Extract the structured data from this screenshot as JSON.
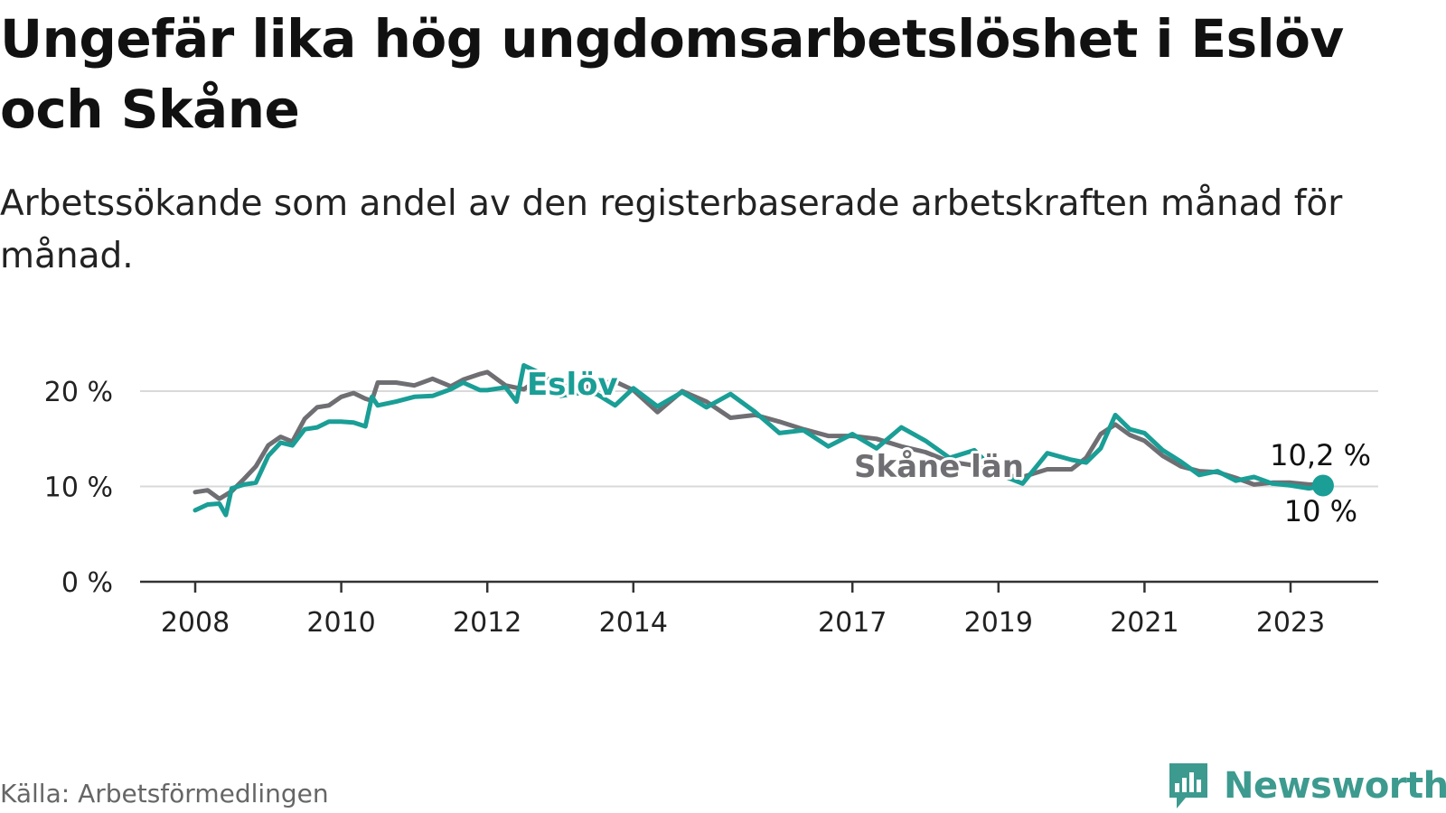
{
  "title": "Ungefär lika hög ungdomsarbetslöshet i Eslöv och Skåne",
  "subtitle": "Arbetssökande som andel av den registerbaserade arbetskraften månad för månad.",
  "source": "Källa: Arbetsförmedlingen",
  "logo": {
    "text": "Newsworthy",
    "icon": "newsworthy-bar-chart-icon"
  },
  "chart_data": {
    "type": "line",
    "ylim": [
      0,
      20
    ],
    "yticks": [
      0,
      10,
      20
    ],
    "ytick_labels": [
      "0 %",
      "10 %",
      "20 %"
    ],
    "xlim": [
      2008,
      2023.5
    ],
    "xticks": [
      2008,
      2010,
      2012,
      2014,
      2017,
      2019,
      2021,
      2023
    ],
    "xtick_labels": [
      "2008",
      "2010",
      "2012",
      "2014",
      "2017",
      "2019",
      "2021",
      "2023"
    ],
    "grid": true,
    "series": [
      {
        "name": "Skåne län",
        "color": "#6f6f73",
        "end_label": "10,2 %",
        "x": [
          2008.0,
          2008.17,
          2008.33,
          2008.5,
          2008.67,
          2008.83,
          2009.0,
          2009.17,
          2009.33,
          2009.5,
          2009.67,
          2009.83,
          2010.0,
          2010.17,
          2010.33,
          2010.42,
          2010.5,
          2010.75,
          2011.0,
          2011.25,
          2011.5,
          2011.67,
          2011.9,
          2012.0,
          2012.25,
          2012.5,
          2012.75,
          2013.0,
          2013.25,
          2013.5,
          2013.75,
          2014.0,
          2014.33,
          2014.67,
          2015.0,
          2015.33,
          2015.67,
          2016.0,
          2016.33,
          2016.67,
          2017.0,
          2017.33,
          2017.67,
          2018.0,
          2018.33,
          2018.67,
          2019.0,
          2019.33,
          2019.67,
          2020.0,
          2020.2,
          2020.4,
          2020.6,
          2020.8,
          2021.0,
          2021.25,
          2021.5,
          2021.75,
          2022.0,
          2022.25,
          2022.5,
          2022.75,
          2023.0,
          2023.25,
          2023.42
        ],
        "y": [
          9.4,
          9.6,
          8.7,
          9.5,
          10.8,
          12.1,
          14.3,
          15.2,
          14.7,
          17.1,
          18.3,
          18.5,
          19.4,
          19.8,
          19.2,
          19.0,
          20.9,
          20.9,
          20.6,
          21.3,
          20.5,
          21.2,
          21.8,
          22.0,
          20.6,
          20.2,
          21.5,
          20.8,
          20.1,
          20.8,
          21.0,
          20.1,
          17.8,
          20.0,
          18.9,
          17.2,
          17.5,
          16.8,
          16.0,
          15.3,
          15.3,
          15.0,
          14.2,
          13.6,
          12.6,
          12.2,
          11.2,
          11.0,
          11.8,
          11.8,
          13.0,
          15.5,
          16.5,
          15.4,
          14.8,
          13.2,
          12.1,
          11.6,
          11.5,
          10.9,
          10.2,
          10.4,
          10.4,
          10.2,
          10.2
        ]
      },
      {
        "name": "Eslöv",
        "color": "#1a9e96",
        "end_label": "10 %",
        "x": [
          2008.0,
          2008.17,
          2008.33,
          2008.42,
          2008.5,
          2008.67,
          2008.83,
          2009.0,
          2009.17,
          2009.33,
          2009.5,
          2009.67,
          2009.83,
          2010.0,
          2010.17,
          2010.33,
          2010.42,
          2010.5,
          2010.75,
          2011.0,
          2011.25,
          2011.5,
          2011.67,
          2011.9,
          2012.0,
          2012.25,
          2012.4,
          2012.5,
          2012.75,
          2013.0,
          2013.25,
          2013.5,
          2013.75,
          2014.0,
          2014.33,
          2014.67,
          2015.0,
          2015.33,
          2015.67,
          2016.0,
          2016.33,
          2016.67,
          2017.0,
          2017.33,
          2017.67,
          2018.0,
          2018.33,
          2018.67,
          2019.0,
          2019.33,
          2019.67,
          2020.0,
          2020.2,
          2020.4,
          2020.6,
          2020.8,
          2021.0,
          2021.25,
          2021.5,
          2021.75,
          2022.0,
          2022.25,
          2022.5,
          2022.75,
          2023.0,
          2023.25,
          2023.42
        ],
        "y": [
          7.5,
          8.1,
          8.2,
          7.0,
          9.8,
          10.2,
          10.4,
          13.2,
          14.6,
          14.3,
          16.0,
          16.2,
          16.8,
          16.8,
          16.7,
          16.3,
          19.4,
          18.5,
          18.9,
          19.4,
          19.5,
          20.2,
          20.9,
          20.1,
          20.1,
          20.4,
          18.9,
          22.7,
          21.8,
          19.5,
          19.8,
          19.7,
          18.5,
          20.3,
          18.4,
          19.9,
          18.3,
          19.7,
          17.8,
          15.6,
          15.9,
          14.2,
          15.5,
          14.0,
          16.2,
          14.8,
          13.0,
          13.8,
          11.3,
          10.3,
          13.5,
          12.8,
          12.5,
          14.0,
          17.5,
          16.0,
          15.6,
          13.8,
          12.6,
          11.2,
          11.6,
          10.6,
          11.0,
          10.3,
          10.1,
          9.8,
          10.0
        ]
      }
    ]
  }
}
